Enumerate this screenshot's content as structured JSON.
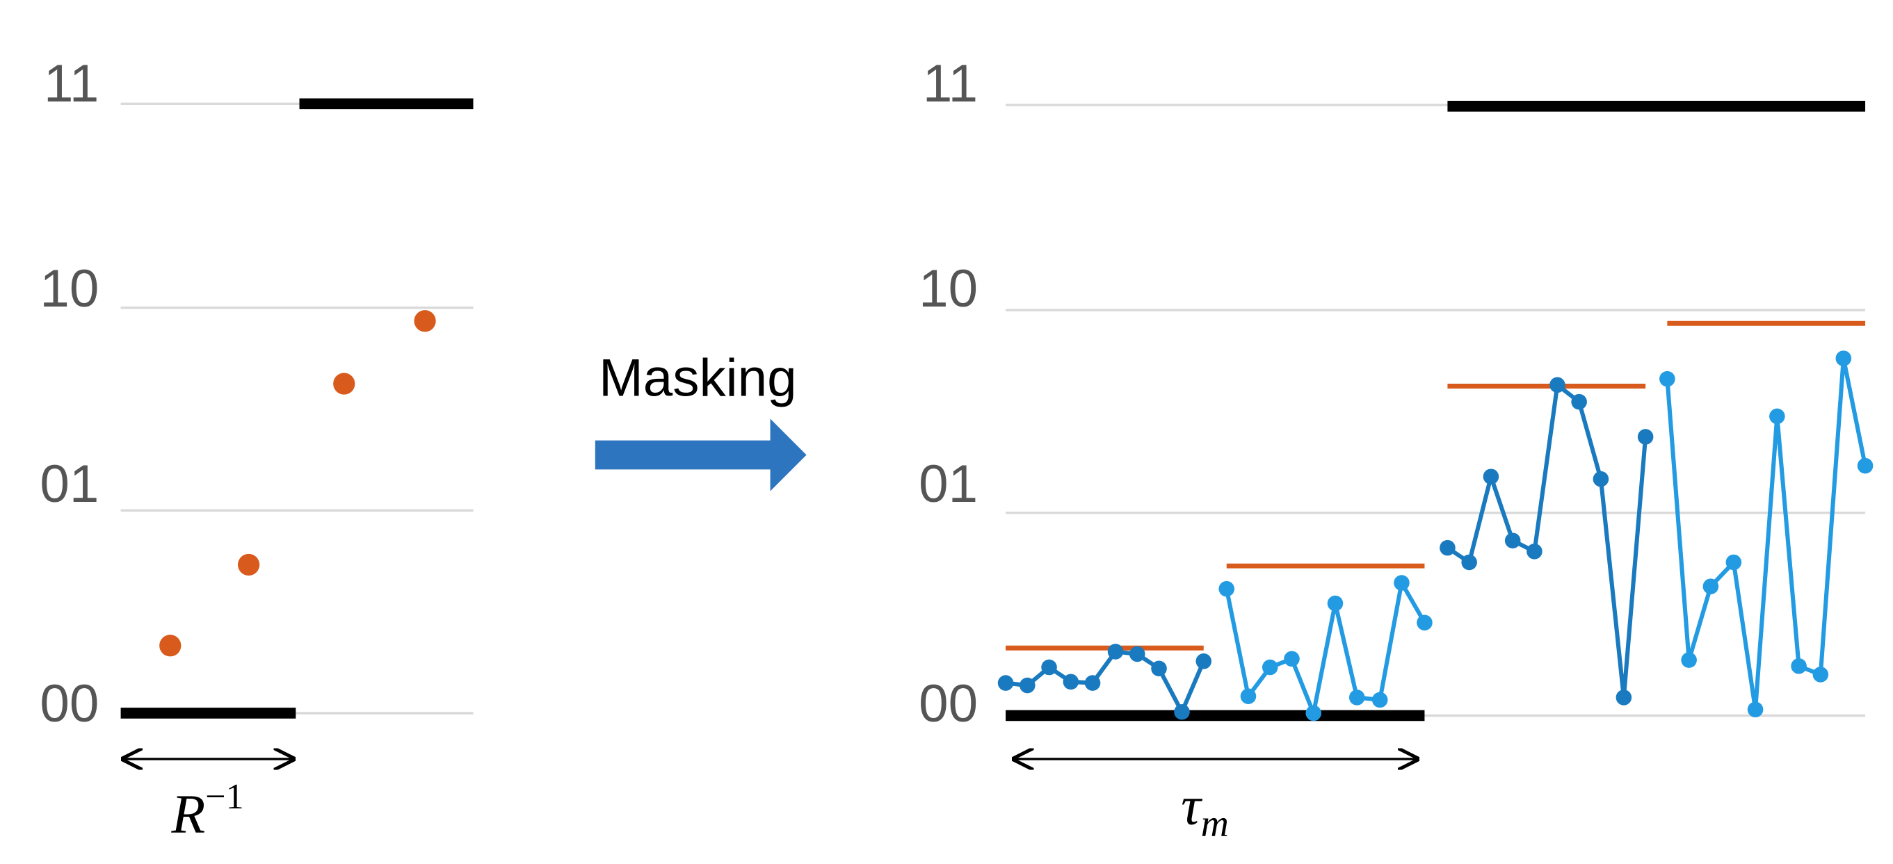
{
  "left": {
    "levels": [
      "11",
      "10",
      "01",
      "00"
    ],
    "span_label": {
      "base": "R",
      "exponent": "−1"
    }
  },
  "arrow_label": "Masking",
  "right": {
    "levels": [
      "11",
      "10",
      "01",
      "00"
    ],
    "span_label": {
      "base": "τ",
      "subscript": "m"
    }
  }
}
